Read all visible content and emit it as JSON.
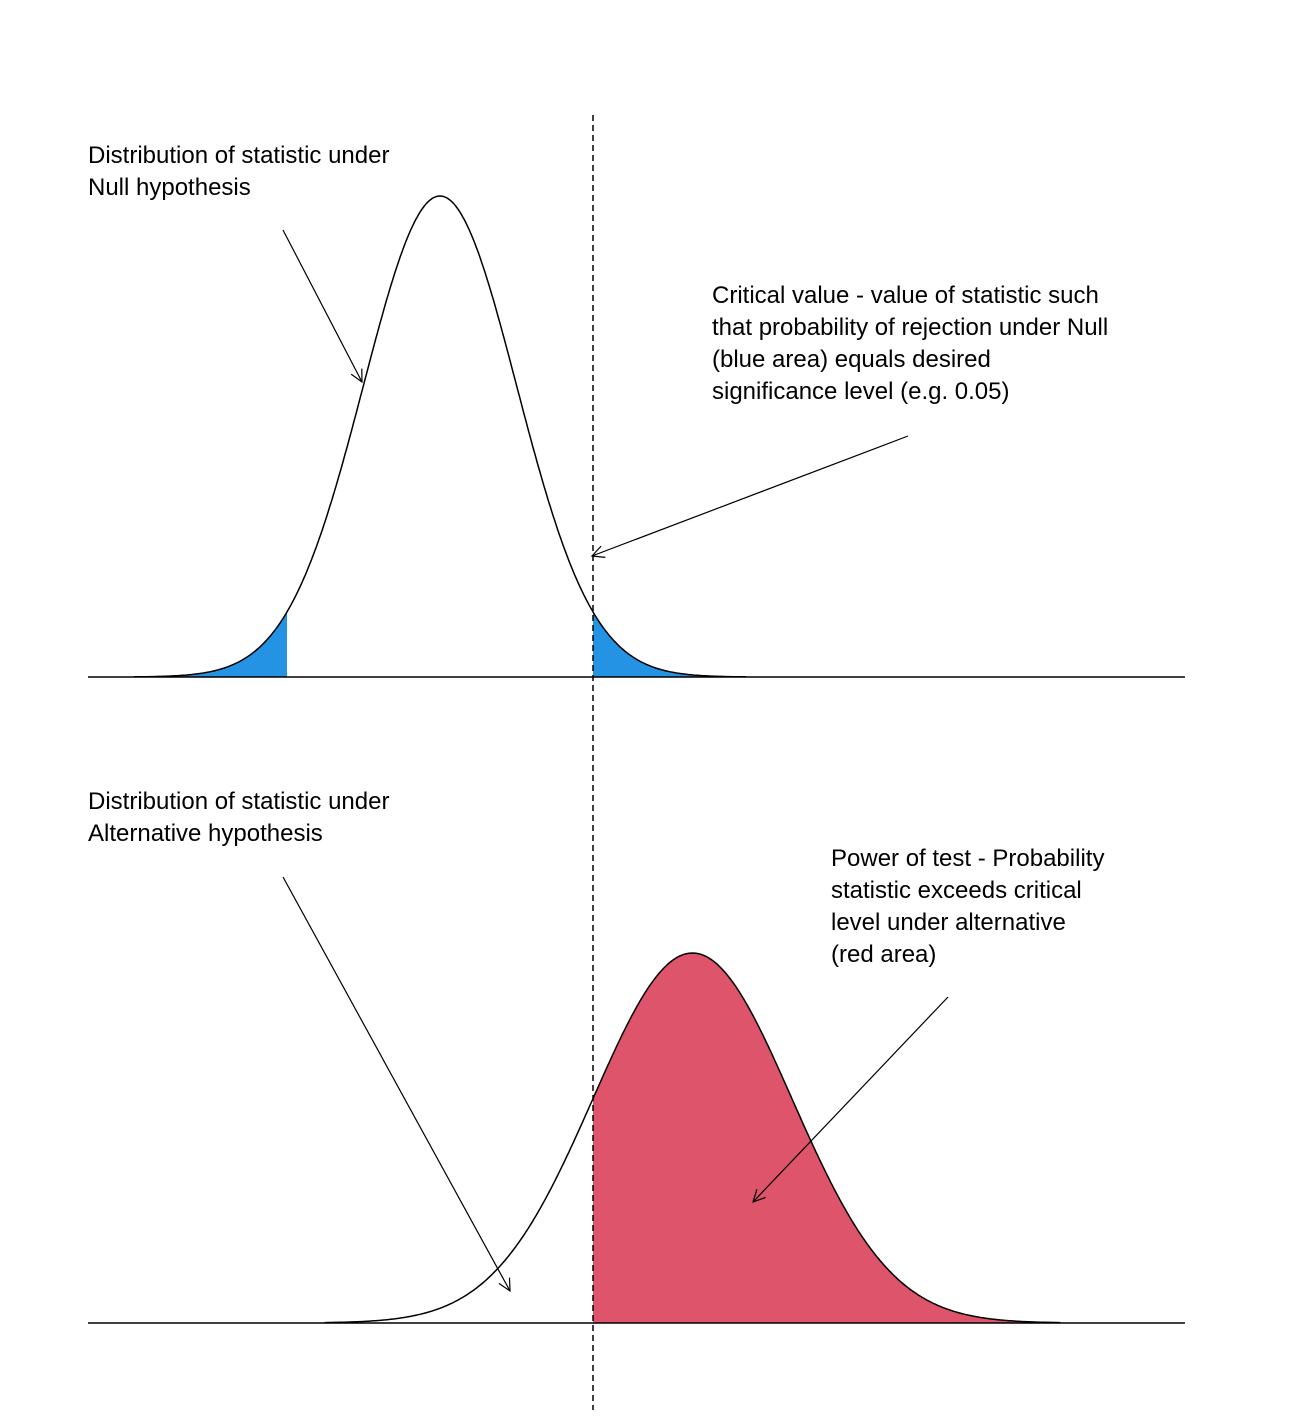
{
  "annotations": {
    "null_dist": [
      "Distribution of statistic under",
      "Null hypothesis"
    ],
    "critical_value": [
      "Critical value - value of statistic such",
      "that probability of rejection under Null",
      "(blue area) equals desired",
      "significance level (e.g. 0.05)"
    ],
    "alt_dist": [
      "Distribution of statistic under",
      "Alternative hypothesis"
    ],
    "power": [
      "Power of test - Probability",
      "statistic exceeds critical",
      "level under alternative",
      "(red area)"
    ]
  },
  "colors": {
    "null_rejection_fill": "#2493E3",
    "power_fill": "#DE546B",
    "curve": "#000000"
  },
  "model": {
    "null": {
      "mean": 0,
      "sd": 1
    },
    "alternative": {
      "mean": 3.3,
      "sd": 1.3
    },
    "critical_value": 2,
    "lower_critical_value": -2
  }
}
